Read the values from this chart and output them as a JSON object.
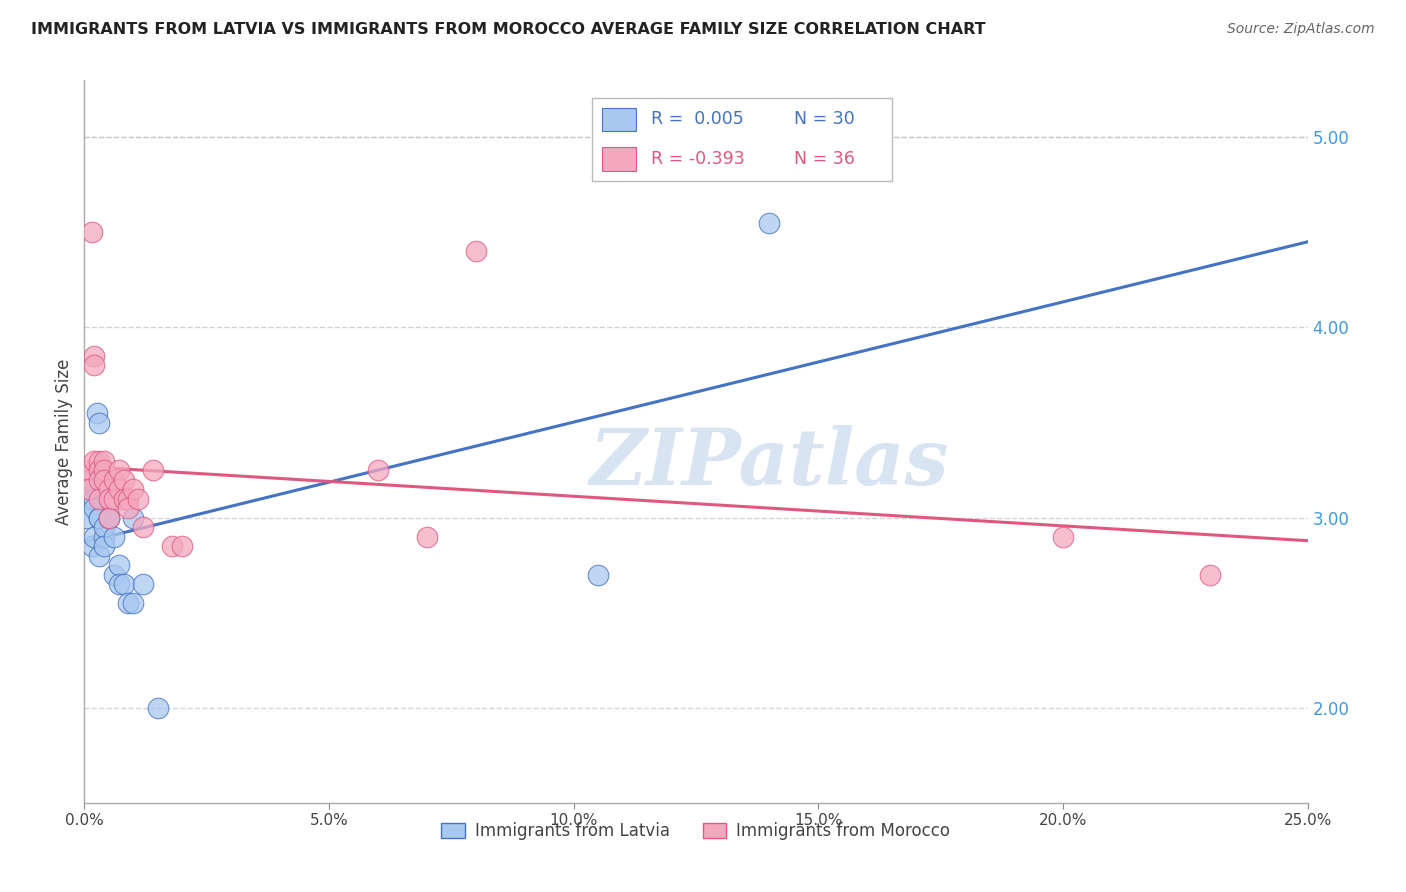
{
  "title": "IMMIGRANTS FROM LATVIA VS IMMIGRANTS FROM MOROCCO AVERAGE FAMILY SIZE CORRELATION CHART",
  "source": "Source: ZipAtlas.com",
  "ylabel": "Average Family Size",
  "right_yticks": [
    2.0,
    3.0,
    4.0,
    5.0
  ],
  "xlim": [
    0.0,
    0.25
  ],
  "ylim": [
    1.5,
    5.3
  ],
  "latvia_color": "#a8c8f0",
  "latvia_color_dark": "#4472c4",
  "morocco_color": "#f4a8c0",
  "morocco_color_dark": "#e05880",
  "legend_R_latvia": "R =  0.005",
  "legend_N_latvia": "N = 30",
  "legend_R_morocco": "R = -0.393",
  "legend_N_morocco": "N = 36",
  "latvia_x": [
    0.0005,
    0.001,
    0.001,
    0.0015,
    0.002,
    0.002,
    0.002,
    0.0025,
    0.003,
    0.003,
    0.003,
    0.003,
    0.004,
    0.004,
    0.004,
    0.005,
    0.005,
    0.005,
    0.006,
    0.006,
    0.007,
    0.007,
    0.008,
    0.009,
    0.01,
    0.01,
    0.012,
    0.015,
    0.105,
    0.14
  ],
  "latvia_y": [
    3.0,
    3.2,
    3.15,
    2.85,
    3.1,
    3.05,
    2.9,
    3.55,
    3.5,
    3.0,
    3.0,
    2.8,
    2.9,
    2.95,
    2.85,
    3.0,
    3.0,
    3.1,
    2.9,
    2.7,
    2.75,
    2.65,
    2.65,
    2.55,
    2.55,
    3.0,
    2.65,
    2.0,
    2.7,
    4.55
  ],
  "morocco_x": [
    0.0005,
    0.001,
    0.001,
    0.0015,
    0.002,
    0.002,
    0.002,
    0.003,
    0.003,
    0.003,
    0.003,
    0.004,
    0.004,
    0.004,
    0.005,
    0.005,
    0.005,
    0.006,
    0.006,
    0.007,
    0.007,
    0.008,
    0.008,
    0.009,
    0.009,
    0.01,
    0.011,
    0.012,
    0.014,
    0.018,
    0.02,
    0.06,
    0.07,
    0.08,
    0.2,
    0.23
  ],
  "morocco_y": [
    3.2,
    3.25,
    3.15,
    4.5,
    3.85,
    3.8,
    3.3,
    3.3,
    3.25,
    3.2,
    3.1,
    3.3,
    3.25,
    3.2,
    3.15,
    3.1,
    3.0,
    3.2,
    3.1,
    3.25,
    3.15,
    3.2,
    3.1,
    3.1,
    3.05,
    3.15,
    3.1,
    2.95,
    3.25,
    2.85,
    2.85,
    3.25,
    2.9,
    4.4,
    2.9,
    2.7
  ],
  "watermark": "ZIPatlas",
  "grid_color": "#c8c8c8",
  "background_color": "#ffffff",
  "xtick_labels": [
    "0.0%",
    "5.0%",
    "10.0%",
    "15.0%",
    "20.0%",
    "25.0%"
  ],
  "xtick_vals": [
    0.0,
    0.05,
    0.1,
    0.15,
    0.2,
    0.25
  ]
}
